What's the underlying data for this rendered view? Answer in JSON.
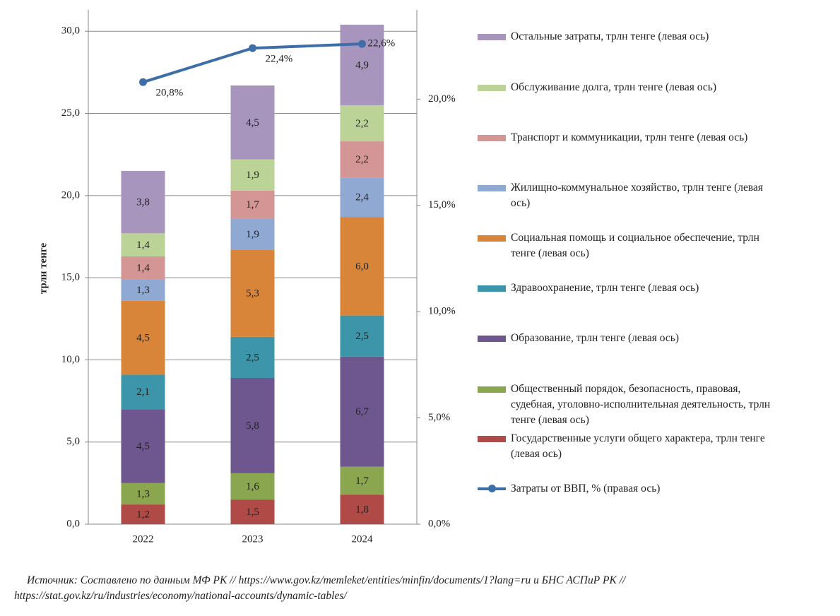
{
  "chart_data": {
    "type": "bar",
    "stacked": true,
    "y_axis_label": "трлн тенге",
    "categories": [
      "2022",
      "2023",
      "2024"
    ],
    "ylim": [
      0,
      31.3
    ],
    "yticks": [
      {
        "value": 0,
        "label": "0,0"
      },
      {
        "value": 5,
        "label": "5,0"
      },
      {
        "value": 10,
        "label": "10,0"
      },
      {
        "value": 15,
        "label": "15,0"
      },
      {
        "value": 20,
        "label": "20,0"
      },
      {
        "value": 25,
        "label": "25,0"
      },
      {
        "value": 30,
        "label": "30,0"
      }
    ],
    "y2lim": [
      0,
      24.2
    ],
    "y2ticks": [
      {
        "value": 0,
        "label": "0,0%"
      },
      {
        "value": 5,
        "label": "5,0%"
      },
      {
        "value": 10,
        "label": "10,0%"
      },
      {
        "value": 15,
        "label": "15,0%"
      },
      {
        "value": 20,
        "label": "20,0%"
      }
    ],
    "grid": true,
    "legend": "right",
    "series": [
      {
        "name": "Государственные услуги общего характера, трлн тенге (левая ось)",
        "color": "#b04a46",
        "values": [
          1.2,
          1.5,
          1.8
        ],
        "value_labels": [
          "1,2",
          "1,5",
          "1,8"
        ]
      },
      {
        "name": "Общественный порядок, безопасность, правовая, судебная, уголовно-исполнительная деятельность, трлн тенге (левая ось)",
        "color": "#8aa64f",
        "values": [
          1.3,
          1.6,
          1.7
        ],
        "value_labels": [
          "1,3",
          "1,6",
          "1,7"
        ]
      },
      {
        "name": "Образование, трлн тенге (левая ось)",
        "color": "#6e578e",
        "values": [
          4.5,
          5.8,
          6.7
        ],
        "value_labels": [
          "4,5",
          "5,8",
          "6,7"
        ]
      },
      {
        "name": "Здравоохранение, трлн тенге (левая ось)",
        "color": "#3c95a8",
        "values": [
          2.1,
          2.5,
          2.5
        ],
        "value_labels": [
          "2,1",
          "2,5",
          "2,5"
        ]
      },
      {
        "name": "Социальная помощь и социальное обеспечение, трлн тенге (левая ось)",
        "color": "#d98539",
        "values": [
          4.5,
          5.3,
          6.0
        ],
        "value_labels": [
          "4,5",
          "5,3",
          "6,0"
        ]
      },
      {
        "name": "Жилищно-коммунальное хозяйство, трлн тенге (левая ось)",
        "color": "#8fa9d3",
        "values": [
          1.3,
          1.9,
          2.4
        ],
        "value_labels": [
          "1,3",
          "1,9",
          "2,4"
        ]
      },
      {
        "name": "Транспорт и коммуникации, трлн тенге (левая ось)",
        "color": "#d49694",
        "values": [
          1.4,
          1.7,
          2.2
        ],
        "value_labels": [
          "1,4",
          "1,7",
          "2,2"
        ]
      },
      {
        "name": "Обслуживание долга, трлн тенге (левая ось)",
        "color": "#bcd397",
        "values": [
          1.4,
          1.9,
          2.2
        ],
        "value_labels": [
          "1,4",
          "1,9",
          "2,2"
        ]
      },
      {
        "name": "Остальные затраты, трлн тенге (левая ось)",
        "color": "#a895bd",
        "values": [
          3.8,
          4.5,
          4.9
        ],
        "value_labels": [
          "3,8",
          "4,5",
          "4,9"
        ]
      },
      {
        "name": "Затраты от ВВП, % (правая ось)",
        "type": "line",
        "axis": "y2",
        "color": "#3d6ea8",
        "values": [
          20.8,
          22.4,
          22.6
        ],
        "value_labels": [
          "20,8%",
          "22,4%",
          "22,6%"
        ]
      }
    ],
    "source": "Источник: Составлено по данным МФ РК // https://www.gov.kz/memleket/entities/minfin/documents/1?lang=ru и БНС АСПиР РК // https://stat.gov.kz/ru/industries/economy/national-accounts/dynamic-tables/"
  }
}
